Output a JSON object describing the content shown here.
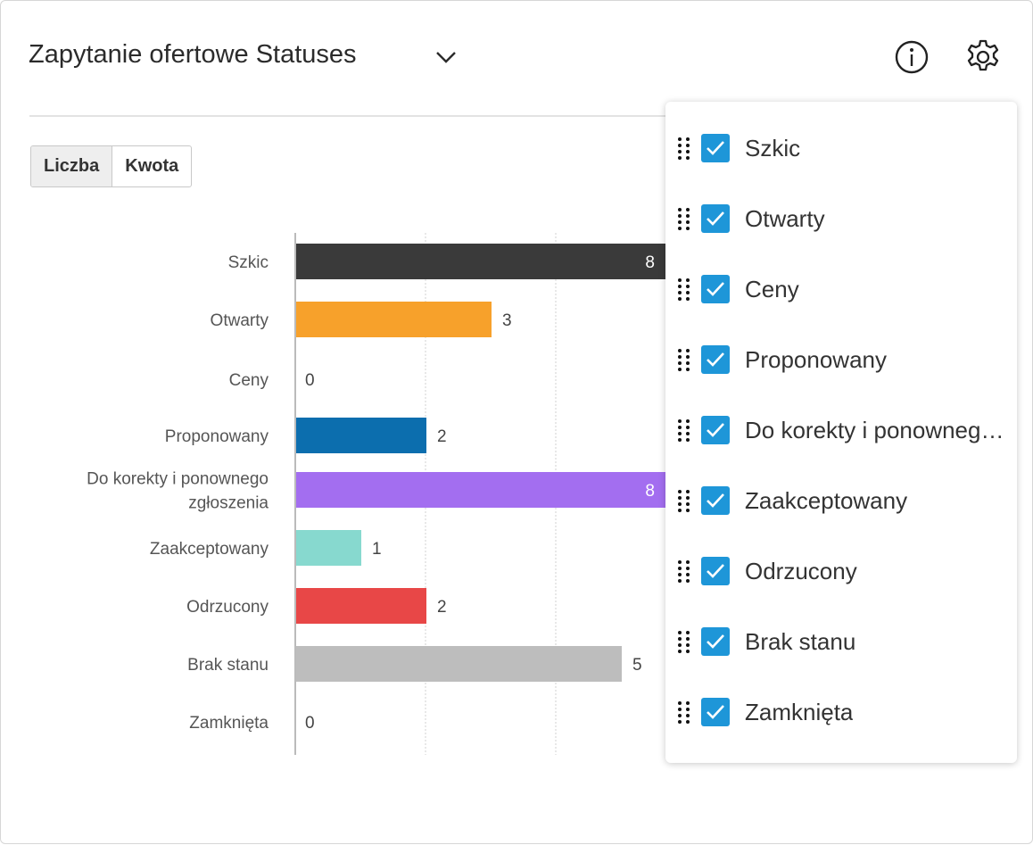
{
  "header": {
    "title": "Zapytanie ofertowe Statuses"
  },
  "toggle": {
    "options": [
      "Liczba",
      "Kwota"
    ],
    "active": "Liczba"
  },
  "chart_data": {
    "type": "bar",
    "orientation": "horizontal",
    "categories": [
      "Szkic",
      "Otwarty",
      "Ceny",
      "Proponowany",
      "Do korekty i ponownego zgłoszenia",
      "Zaakceptowany",
      "Odrzucony",
      "Brak stanu",
      "Zamknięta"
    ],
    "category_lines": [
      [
        "Szkic"
      ],
      [
        "Otwarty"
      ],
      [
        "Ceny"
      ],
      [
        "Proponowany"
      ],
      [
        "Do korekty i ponownego",
        "zgłoszenia"
      ],
      [
        "Zaakceptowany"
      ],
      [
        "Odrzucony"
      ],
      [
        "Brak stanu"
      ],
      [
        "Zamknięta"
      ]
    ],
    "values": [
      8,
      3,
      0,
      2,
      8,
      1,
      2,
      5,
      0
    ],
    "colors": [
      "#3a3a3a",
      "#f7a12b",
      "#999999",
      "#0c6eae",
      "#a36ef0",
      "#87d9cf",
      "#e84747",
      "#bdbdbd",
      "#999999"
    ],
    "xlim": [
      0,
      10
    ],
    "grid_step": 2,
    "grid": true
  },
  "popup": {
    "items": [
      "Szkic",
      "Otwarty",
      "Ceny",
      "Proponowany",
      "Do korekty i ponownego zgłoszenia",
      "Zaakceptowany",
      "Odrzucony",
      "Brak stanu",
      "Zamknięta"
    ]
  }
}
